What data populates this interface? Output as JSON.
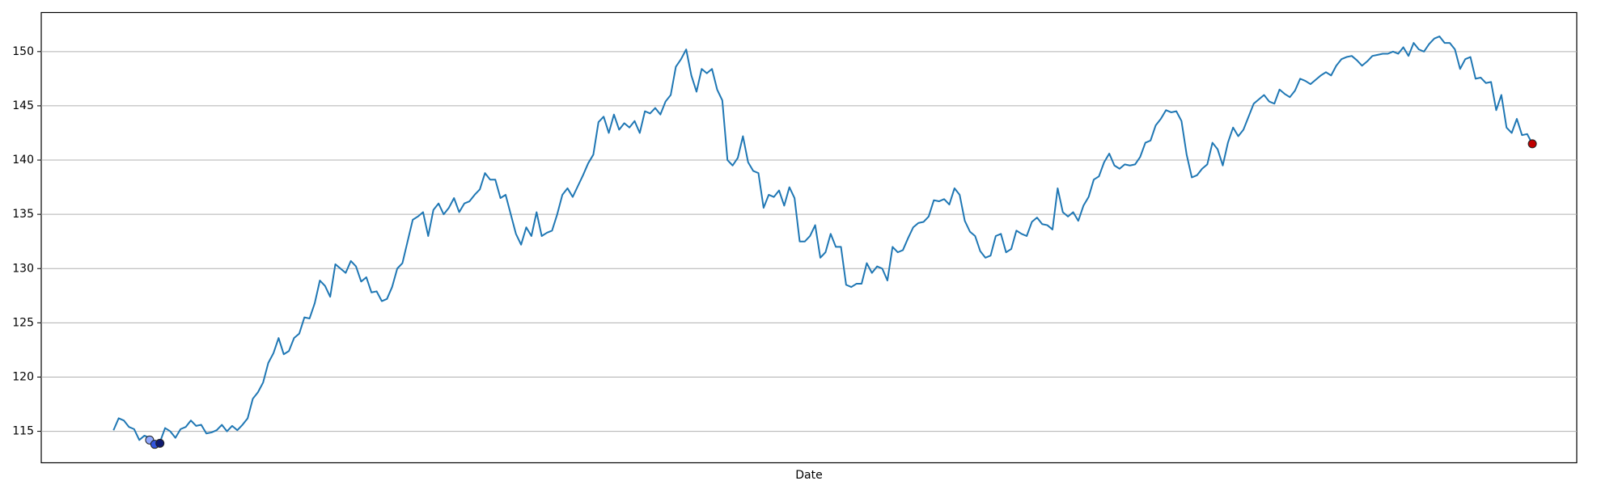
{
  "chart_data": {
    "type": "line",
    "x_label": "Date",
    "series": [
      {
        "color": "#1f77b4",
        "values": [
          115.1,
          116.2,
          116.0,
          115.4,
          115.2,
          114.2,
          114.6,
          114.4,
          113.8,
          114.0,
          115.3,
          115.0,
          114.4,
          115.2,
          115.4,
          116.0,
          115.5,
          115.6,
          114.8,
          114.9,
          115.1,
          115.6,
          115.0,
          115.5,
          115.1,
          115.6,
          116.2,
          118.0,
          118.6,
          119.5,
          121.3,
          122.2,
          123.6,
          122.1,
          122.4,
          123.6,
          124.0,
          125.5,
          125.4,
          126.8,
          128.9,
          128.4,
          127.4,
          130.4,
          130.0,
          129.6,
          130.7,
          130.2,
          128.8,
          129.2,
          127.8,
          127.9,
          127.0,
          127.2,
          128.3,
          130.0,
          130.5,
          132.5,
          134.5,
          134.8,
          135.2,
          133.0,
          135.4,
          136.0,
          135.0,
          135.6,
          136.5,
          135.2,
          136.0,
          136.2,
          136.8,
          137.3,
          138.8,
          138.2,
          138.2,
          136.5,
          136.8,
          135.0,
          133.2,
          132.2,
          133.8,
          133.0,
          135.2,
          133.0,
          133.3,
          133.5,
          135.0,
          136.8,
          137.4,
          136.6,
          137.6,
          138.6,
          139.7,
          140.5,
          143.5,
          144.0,
          142.5,
          144.2,
          142.8,
          143.4,
          143.0,
          143.6,
          142.5,
          144.5,
          144.3,
          144.8,
          144.2,
          145.4,
          146.0,
          148.6,
          149.3,
          150.2,
          147.8,
          146.3,
          148.4,
          148.0,
          148.4,
          146.5,
          145.5,
          140.0,
          139.5,
          140.2,
          142.2,
          139.8,
          139.0,
          138.8,
          135.6,
          136.8,
          136.6,
          137.2,
          135.8,
          137.5,
          136.5,
          132.5,
          132.5,
          133.0,
          134.0,
          131.0,
          131.5,
          133.2,
          132.0,
          132.0,
          128.5,
          128.3,
          128.6,
          128.6,
          130.5,
          129.6,
          130.2,
          130.0,
          128.9,
          132.0,
          131.5,
          131.7,
          132.8,
          133.8,
          134.2,
          134.3,
          134.8,
          136.3,
          136.2,
          136.4,
          135.9,
          137.4,
          136.8,
          134.4,
          133.4,
          133.0,
          131.6,
          131.0,
          131.2,
          133.0,
          133.2,
          131.5,
          131.8,
          133.5,
          133.2,
          133.0,
          134.3,
          134.7,
          134.1,
          134.0,
          133.6,
          137.4,
          135.2,
          134.8,
          135.2,
          134.4,
          135.8,
          136.6,
          138.2,
          138.5,
          139.8,
          140.6,
          139.5,
          139.2,
          139.6,
          139.5,
          139.6,
          140.3,
          141.6,
          141.8,
          143.2,
          143.8,
          144.6,
          144.4,
          144.5,
          143.6,
          140.5,
          138.4,
          138.6,
          139.2,
          139.6,
          141.6,
          141.0,
          139.5,
          141.6,
          143.0,
          142.2,
          142.8,
          144.0,
          145.2,
          145.6,
          146.0,
          145.4,
          145.2,
          146.5,
          146.1,
          145.8,
          146.4,
          147.5,
          147.3,
          147.0,
          147.4,
          147.8,
          148.1,
          147.8,
          148.7,
          149.3,
          149.5,
          149.6,
          149.2,
          148.7,
          149.1,
          149.6,
          149.7,
          149.8,
          149.8,
          150.0,
          149.8,
          150.4,
          149.6,
          150.8,
          150.2,
          150.0,
          150.7,
          151.2,
          151.4,
          150.8,
          150.8,
          150.2,
          148.4,
          149.3,
          149.5,
          147.5,
          147.6,
          147.1,
          147.2,
          144.6,
          146.0,
          143.0,
          142.5,
          143.8,
          142.3,
          142.4,
          141.5
        ]
      }
    ],
    "highlights": {
      "x": [
        7,
        8,
        9,
        275
      ],
      "values": [
        114.2,
        113.8,
        113.9,
        141.5
      ],
      "colors": [
        "#8fa8ff",
        "#3355dd",
        "#101a70",
        "#c00000"
      ]
    },
    "ylim": [
      112.1,
      153.6
    ],
    "yticks": [
      115,
      120,
      125,
      130,
      135,
      140,
      145,
      150
    ],
    "grid": "y"
  }
}
